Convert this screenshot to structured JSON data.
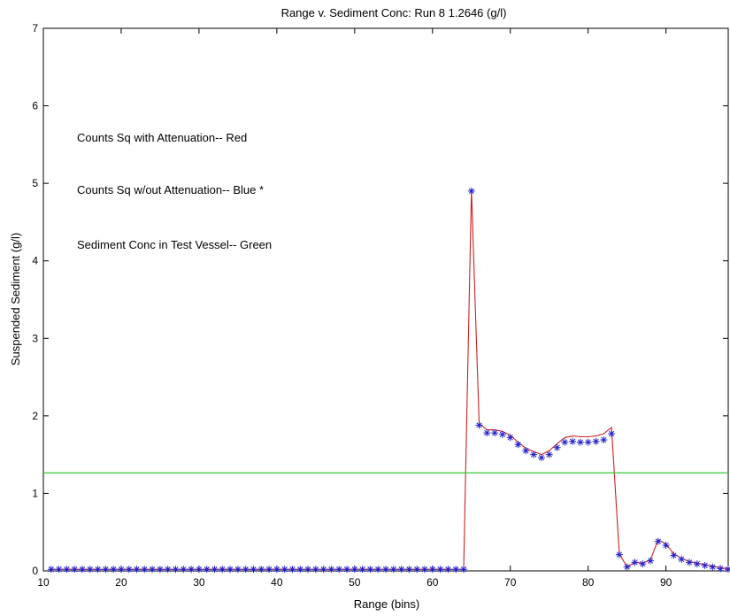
{
  "chart_data": {
    "type": "line",
    "title": "Range v. Sediment Conc: Run 8    1.2646 (g/l)",
    "xlabel": "Range (bins)",
    "ylabel": "Suspended Sediment (g/l)",
    "xlim": [
      10,
      98
    ],
    "ylim": [
      0,
      7
    ],
    "x_ticks": [
      10,
      20,
      30,
      40,
      50,
      60,
      70,
      80,
      90
    ],
    "y_ticks": [
      0,
      1,
      2,
      3,
      4,
      5,
      6,
      7
    ],
    "grid": false,
    "annotations": [
      "Counts Sq with Attenuation-- Red",
      "Counts Sq w/out Attenuation-- Blue *",
      "Sediment Conc in Test Vessel-- Green"
    ],
    "colors": {
      "red": "#cc2222",
      "blue": "#2222cc",
      "green": "#33cc33"
    },
    "x": [
      11,
      12,
      13,
      14,
      15,
      16,
      17,
      18,
      19,
      20,
      21,
      22,
      23,
      24,
      25,
      26,
      27,
      28,
      29,
      30,
      31,
      32,
      33,
      34,
      35,
      36,
      37,
      38,
      39,
      40,
      41,
      42,
      43,
      44,
      45,
      46,
      47,
      48,
      49,
      50,
      51,
      52,
      53,
      54,
      55,
      56,
      57,
      58,
      59,
      60,
      61,
      62,
      63,
      64,
      65,
      66,
      67,
      68,
      69,
      70,
      71,
      72,
      73,
      74,
      75,
      76,
      77,
      78,
      79,
      80,
      81,
      82,
      83,
      84,
      85,
      86,
      87,
      88,
      89,
      90,
      91,
      92,
      93,
      94,
      95,
      96,
      97,
      98
    ],
    "series": [
      {
        "name": "Counts Sq with Attenuation",
        "color": "#cc2222",
        "marker": "none",
        "values": [
          0.02,
          0.02,
          0.02,
          0.02,
          0.02,
          0.02,
          0.02,
          0.02,
          0.02,
          0.02,
          0.02,
          0.02,
          0.02,
          0.02,
          0.02,
          0.02,
          0.02,
          0.02,
          0.02,
          0.02,
          0.02,
          0.02,
          0.02,
          0.02,
          0.02,
          0.02,
          0.02,
          0.02,
          0.02,
          0.02,
          0.02,
          0.02,
          0.02,
          0.02,
          0.02,
          0.02,
          0.02,
          0.02,
          0.02,
          0.02,
          0.02,
          0.02,
          0.02,
          0.02,
          0.02,
          0.02,
          0.02,
          0.02,
          0.02,
          0.02,
          0.02,
          0.02,
          0.02,
          0.02,
          4.92,
          1.9,
          1.82,
          1.82,
          1.8,
          1.75,
          1.66,
          1.58,
          1.54,
          1.5,
          1.55,
          1.64,
          1.72,
          1.74,
          1.73,
          1.73,
          1.74,
          1.77,
          1.85,
          0.22,
          0.05,
          0.11,
          0.1,
          0.14,
          0.4,
          0.35,
          0.22,
          0.16,
          0.12,
          0.1,
          0.08,
          0.06,
          0.04,
          0.03
        ]
      },
      {
        "name": "Counts Sq w/out Attenuation",
        "color": "#2222cc",
        "marker": "*",
        "values": [
          0.02,
          0.02,
          0.02,
          0.02,
          0.02,
          0.02,
          0.02,
          0.02,
          0.02,
          0.02,
          0.02,
          0.02,
          0.02,
          0.02,
          0.02,
          0.02,
          0.02,
          0.02,
          0.02,
          0.02,
          0.02,
          0.02,
          0.02,
          0.02,
          0.02,
          0.02,
          0.02,
          0.02,
          0.02,
          0.02,
          0.02,
          0.02,
          0.02,
          0.02,
          0.02,
          0.02,
          0.02,
          0.02,
          0.02,
          0.02,
          0.02,
          0.02,
          0.02,
          0.02,
          0.02,
          0.02,
          0.02,
          0.02,
          0.02,
          0.02,
          0.02,
          0.02,
          0.02,
          0.02,
          4.9,
          1.88,
          1.78,
          1.78,
          1.76,
          1.72,
          1.63,
          1.55,
          1.5,
          1.46,
          1.5,
          1.59,
          1.66,
          1.67,
          1.66,
          1.66,
          1.67,
          1.69,
          1.77,
          0.21,
          0.05,
          0.11,
          0.09,
          0.13,
          0.38,
          0.33,
          0.2,
          0.15,
          0.11,
          0.09,
          0.07,
          0.05,
          0.03,
          0.02
        ]
      },
      {
        "name": "Sediment Conc in Test Vessel",
        "color": "#33cc33",
        "marker": "none",
        "constant": 1.2646
      }
    ]
  }
}
